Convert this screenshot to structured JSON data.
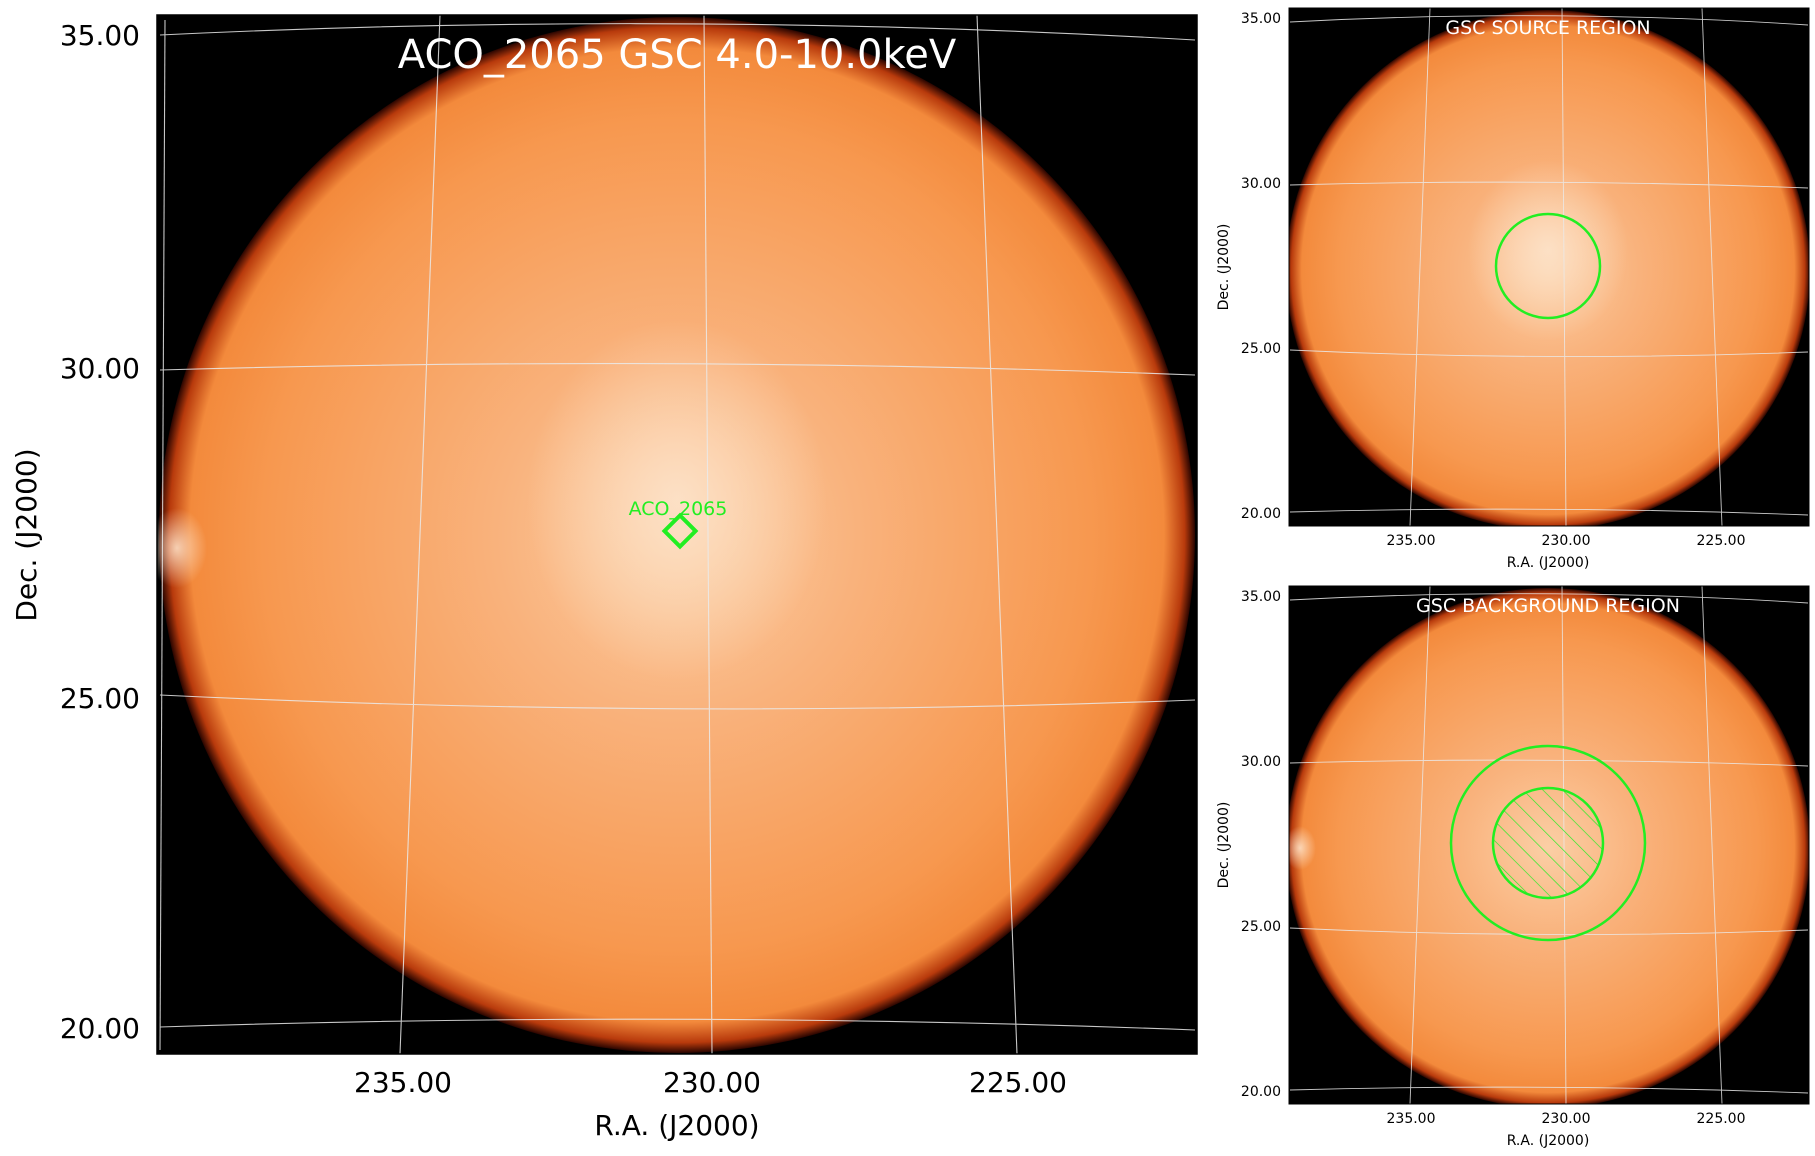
{
  "main_panel": {
    "title": "ACO_2065 GSC 4.0-10.0keV",
    "xlabel": "R.A. (J2000)",
    "ylabel": "Dec. (J2000)",
    "ra_ticks": [
      "235.00",
      "230.00",
      "225.00"
    ],
    "dec_ticks": [
      "35.00",
      "30.00",
      "25.00",
      "20.00"
    ],
    "source_label": "ACO_2065",
    "source_ra": 230.6,
    "source_dec": 27.7
  },
  "source_panel": {
    "title": "GSC SOURCE REGION",
    "xlabel": "R.A. (J2000)",
    "ylabel": "Dec. (J2000)",
    "ra_ticks": [
      "235.00",
      "230.00",
      "225.00"
    ],
    "dec_ticks": [
      "35.00",
      "30.00",
      "25.00",
      "20.00"
    ]
  },
  "background_panel": {
    "title": "GSC BACKGROUND REGION",
    "xlabel": "R.A. (J2000)",
    "ylabel": "Dec. (J2000)",
    "ra_ticks": [
      "235.00",
      "230.00",
      "225.00"
    ],
    "dec_ticks": [
      "35.00",
      "30.00",
      "25.00",
      "20.00"
    ]
  },
  "colors": {
    "disk": "#f7934a",
    "disk_center": "#fbd9b6",
    "rim": "#7a1a00",
    "background": "#000000",
    "region": "#22ee22",
    "grid": "#e8e8e8"
  }
}
